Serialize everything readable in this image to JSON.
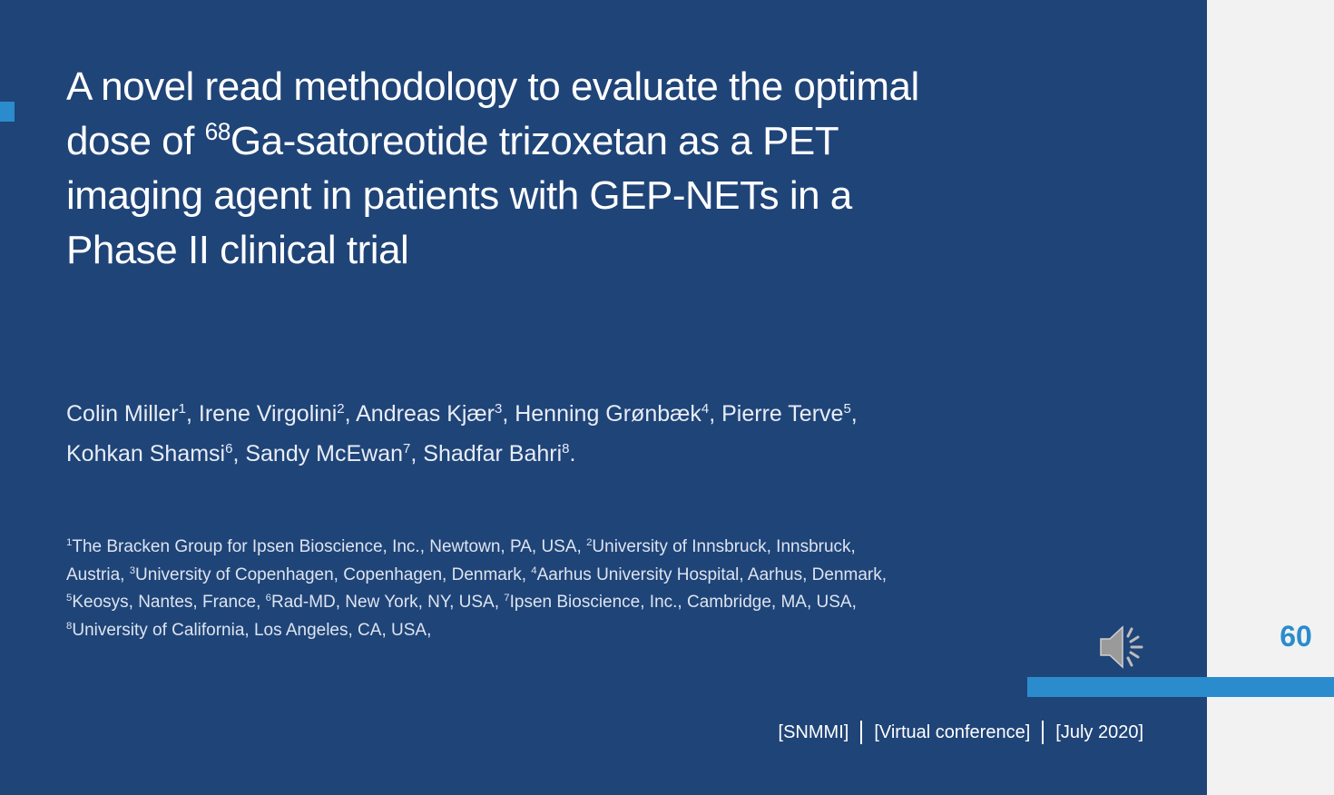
{
  "slide": {
    "title": {
      "lines": [
        [
          {
            "text": "A novel read methodology to evaluate the optimal"
          }
        ],
        [
          {
            "text": "dose of "
          },
          {
            "sup": "68"
          },
          {
            "text": "Ga-satoreotide trizoxetan as a PET"
          }
        ],
        [
          {
            "text": "imaging agent in patients with GEP-NETs in a"
          }
        ],
        [
          {
            "text": "Phase II clinical trial"
          }
        ]
      ]
    },
    "authors": {
      "lines": [
        [
          {
            "text": "Colin Miller"
          },
          {
            "sup": "1"
          },
          {
            "text": ", Irene Virgolini"
          },
          {
            "sup": "2"
          },
          {
            "text": ", Andreas Kjær"
          },
          {
            "sup": "3"
          },
          {
            "text": ", Henning Grønbæk"
          },
          {
            "sup": "4"
          },
          {
            "text": ", Pierre Terve"
          },
          {
            "sup": "5"
          },
          {
            "text": ","
          }
        ],
        [
          {
            "text": "Kohkan Shamsi"
          },
          {
            "sup": "6"
          },
          {
            "text": ", Sandy McEwan"
          },
          {
            "sup": "7"
          },
          {
            "text": ", Shadfar Bahri"
          },
          {
            "sup": "8"
          },
          {
            "text": "."
          }
        ]
      ]
    },
    "affiliations": {
      "lines": [
        [
          {
            "sup": "1"
          },
          {
            "text": "The Bracken Group for Ipsen Bioscience, Inc., Newtown, PA, USA, "
          },
          {
            "sup": "2"
          },
          {
            "text": "University of Innsbruck, Innsbruck,"
          }
        ],
        [
          {
            "text": "Austria, "
          },
          {
            "sup": "3"
          },
          {
            "text": "University of Copenhagen, Copenhagen, Denmark, "
          },
          {
            "sup": "4"
          },
          {
            "text": "Aarhus University Hospital, Aarhus, Denmark,"
          }
        ],
        [
          {
            "sup": "5"
          },
          {
            "text": "Keosys, Nantes, France, "
          },
          {
            "sup": "6"
          },
          {
            "text": "Rad-MD, New York, NY, USA, "
          },
          {
            "sup": "7"
          },
          {
            "text": "Ipsen Bioscience, Inc., Cambridge, MA, USA,"
          }
        ],
        [
          {
            "sup": "8"
          },
          {
            "text": "University of California, Los Angeles, CA, USA,"
          }
        ]
      ]
    },
    "footer": [
      "[SNMMI]",
      "[Virtual conference]",
      "[July 2020]"
    ],
    "page_number": "60"
  }
}
